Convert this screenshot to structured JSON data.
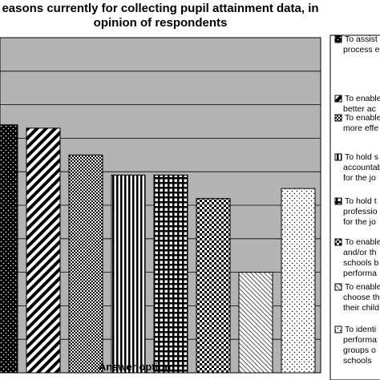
{
  "chart_data": {
    "type": "bar",
    "title_lines": [
      "easons currently for collecting pupil attainment data, in",
      "opinion of respondents"
    ],
    "xlabel": "Answer option",
    "ylabel": "",
    "grid": true,
    "legend_position": "right",
    "categories": [
      "To assist process e",
      "To enable better ac",
      "To enable more effe",
      "To hold s accountab for the jo",
      "To hold t professio for the jo",
      "To enable and/or th schools b performa",
      "To enable choose th their child",
      "To identi performa groups o schools"
    ],
    "values": [
      74,
      73,
      65,
      59,
      59,
      52,
      30,
      55
    ],
    "ylim": [
      0,
      100
    ],
    "series": [
      {
        "name": "",
        "pattern": "dots-dense-black",
        "value": 74
      },
      {
        "name": "",
        "pattern": "diagonal-stripes",
        "value": 73
      },
      {
        "name": "",
        "pattern": "checker-dense",
        "value": 65
      },
      {
        "name": "",
        "pattern": "vertical-stripes",
        "value": 59
      },
      {
        "name": "",
        "pattern": "grid-white-squares",
        "value": 59
      },
      {
        "name": "",
        "pattern": "checker-medium",
        "value": 52
      },
      {
        "name": "",
        "pattern": "thin-diagonal",
        "value": 30
      },
      {
        "name": "",
        "pattern": "sparse-dots",
        "value": 55
      }
    ],
    "legend": [
      {
        "lines": [
          "To assist",
          "process e"
        ]
      },
      {
        "lines": [
          "To enable",
          "better ac"
        ]
      },
      {
        "lines": [
          "To enable",
          "more effe"
        ]
      },
      {
        "lines": [
          "To hold s",
          "accountab",
          "for the jo"
        ]
      },
      {
        "lines": [
          "To hold t",
          "professio",
          "for the jo"
        ]
      },
      {
        "lines": [
          "To enable",
          "and/or th",
          "schools b",
          "performa"
        ]
      },
      {
        "lines": [
          "To enable",
          "choose th",
          "their child"
        ]
      },
      {
        "lines": [
          "To identi",
          "performa",
          "groups o",
          "schools"
        ]
      }
    ]
  },
  "colors": {
    "plot_background": "#b3b3b3",
    "bar_ink": "#000000",
    "bar_paper": "#ffffff"
  }
}
